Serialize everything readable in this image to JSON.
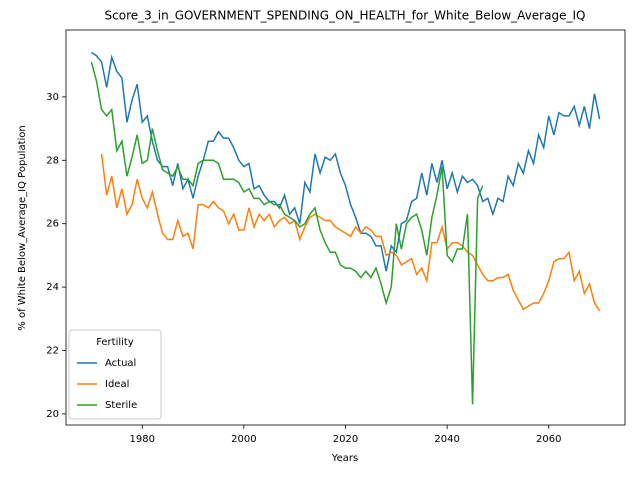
{
  "chart_data": {
    "type": "line",
    "title": "Score_3_in_GOVERNMENT_SPENDING_ON_HEALTH_for_White_Below_Average_IQ",
    "xlabel": "Years",
    "ylabel": "% of White Below_Average_IQ Population",
    "legend_title": "Fertility",
    "legend_loc": "lower left",
    "grid": false,
    "x": [
      1970,
      1971,
      1972,
      1973,
      1974,
      1975,
      1976,
      1977,
      1978,
      1979,
      1980,
      1981,
      1982,
      1983,
      1984,
      1985,
      1986,
      1987,
      1988,
      1989,
      1990,
      1991,
      1992,
      1993,
      1994,
      1995,
      1996,
      1997,
      1998,
      1999,
      2000,
      2001,
      2002,
      2003,
      2004,
      2005,
      2006,
      2007,
      2008,
      2009,
      2010,
      2011,
      2012,
      2013,
      2014,
      2015,
      2016,
      2017,
      2018,
      2019,
      2020,
      2021,
      2022,
      2023,
      2024,
      2025,
      2026,
      2027,
      2028,
      2029,
      2030,
      2031,
      2032,
      2033,
      2034,
      2035,
      2036,
      2037,
      2038,
      2039,
      2040,
      2041,
      2042,
      2043,
      2044,
      2045,
      2046,
      2047,
      2048,
      2049,
      2050,
      2051,
      2052,
      2053,
      2054,
      2055,
      2056,
      2057,
      2058,
      2059,
      2060,
      2061,
      2062,
      2063,
      2064,
      2065,
      2066,
      2067,
      2068,
      2069,
      2070
    ],
    "xlim": [
      1965,
      2075
    ],
    "xticks": [
      1980,
      2000,
      2020,
      2040,
      2060
    ],
    "ylim": [
      19.65,
      32.11
    ],
    "yticks": [
      20,
      22,
      24,
      26,
      28,
      30
    ],
    "series": [
      {
        "name": "Actual",
        "color": "#1f77b4",
        "values": [
          31.4,
          31.3,
          31.1,
          30.3,
          31.25,
          30.8,
          30.6,
          29.2,
          29.9,
          30.4,
          29.2,
          29.4,
          28.6,
          28.0,
          27.8,
          27.8,
          27.2,
          27.9,
          27.1,
          27.4,
          26.8,
          27.5,
          28.0,
          28.6,
          28.6,
          28.9,
          28.7,
          28.7,
          28.4,
          28.0,
          27.8,
          27.9,
          27.1,
          27.2,
          26.9,
          26.7,
          26.7,
          26.5,
          26.9,
          26.3,
          26.5,
          26.0,
          27.3,
          27.0,
          28.2,
          27.6,
          28.1,
          28.0,
          28.2,
          27.6,
          27.2,
          26.6,
          26.2,
          25.7,
          25.7,
          25.6,
          25.3,
          25.3,
          24.5,
          25.3,
          25.1,
          26.0,
          26.1,
          26.7,
          26.8,
          27.6,
          26.9,
          27.9,
          27.3,
          28.0,
          27.1,
          27.6,
          27.0,
          27.5,
          27.3,
          27.4,
          27.2,
          26.7,
          26.8,
          26.3,
          26.8,
          26.7,
          27.5,
          27.2,
          27.9,
          27.6,
          28.3,
          27.9,
          28.8,
          28.4,
          29.4,
          28.8,
          29.5,
          29.4,
          29.4,
          29.7,
          29.1,
          29.7,
          29.0,
          30.1,
          29.3
        ]
      },
      {
        "name": "Ideal",
        "color": "#ff7f0e",
        "values": [
          null,
          null,
          28.2,
          26.9,
          27.5,
          26.5,
          27.1,
          26.3,
          26.6,
          27.4,
          26.8,
          26.5,
          27.0,
          26.3,
          25.7,
          25.5,
          25.5,
          26.1,
          25.6,
          25.7,
          25.2,
          26.6,
          26.6,
          26.5,
          26.7,
          26.5,
          26.4,
          26.0,
          26.3,
          25.8,
          25.8,
          26.5,
          25.9,
          26.3,
          26.1,
          26.3,
          25.9,
          26.1,
          26.2,
          26.0,
          26.1,
          25.5,
          25.9,
          26.2,
          26.3,
          26.2,
          26.1,
          26.1,
          25.9,
          25.8,
          25.7,
          25.6,
          25.9,
          25.7,
          25.9,
          25.8,
          25.6,
          25.6,
          25.0,
          25.1,
          25.0,
          24.7,
          24.8,
          24.9,
          24.4,
          24.6,
          24.2,
          25.4,
          25.4,
          25.9,
          25.2,
          25.4,
          25.4,
          25.3,
          25.1,
          25.0,
          24.7,
          24.4,
          24.2,
          24.2,
          24.3,
          24.3,
          24.4,
          23.9,
          23.6,
          23.3,
          23.4,
          23.5,
          23.5,
          23.8,
          24.2,
          24.8,
          24.9,
          24.9,
          25.1,
          24.2,
          24.5,
          23.8,
          24.1,
          23.5,
          23.25
        ]
      },
      {
        "name": "Sterile",
        "color": "#2ca02c",
        "values": [
          31.1,
          30.5,
          29.6,
          29.4,
          29.6,
          28.3,
          28.6,
          27.5,
          28.1,
          28.8,
          27.9,
          28.0,
          29.0,
          28.3,
          27.7,
          27.6,
          27.5,
          27.8,
          27.4,
          27.4,
          27.2,
          27.9,
          28.0,
          28.0,
          28.0,
          27.9,
          27.4,
          27.4,
          27.4,
          27.3,
          27.0,
          27.1,
          26.8,
          26.8,
          26.6,
          26.7,
          26.6,
          26.6,
          26.3,
          26.2,
          26.1,
          25.9,
          26.0,
          26.3,
          26.5,
          25.8,
          25.4,
          25.1,
          25.1,
          24.7,
          24.6,
          24.6,
          24.5,
          24.3,
          24.5,
          24.3,
          24.6,
          24.1,
          23.5,
          24.0,
          26.0,
          25.2,
          26.0,
          26.2,
          26.3,
          25.8,
          25.0,
          26.2,
          26.9,
          27.8,
          25.0,
          24.8,
          25.2,
          25.2,
          26.3,
          20.3,
          26.8,
          27.2,
          null,
          null,
          null,
          null,
          null,
          null,
          null,
          null,
          null,
          null,
          null,
          null,
          null,
          null,
          null,
          null,
          null,
          null,
          null,
          null,
          null,
          null,
          null
        ]
      }
    ]
  }
}
